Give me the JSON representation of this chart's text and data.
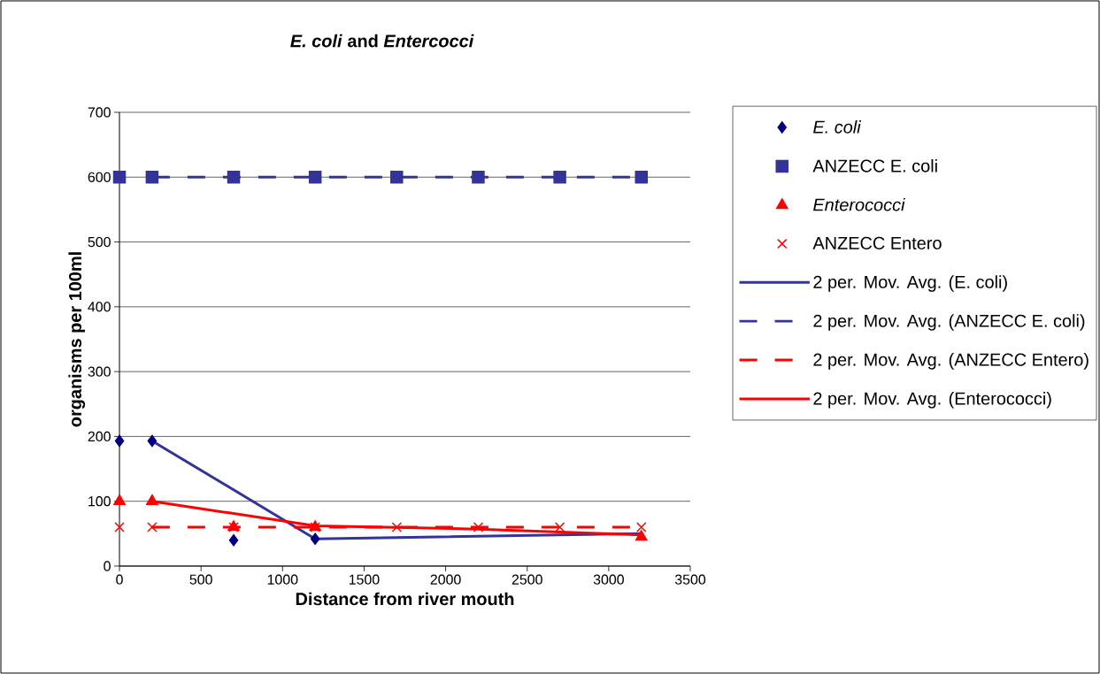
{
  "chart_data": {
    "type": "scatter",
    "title": "*E. coli* and *Entercocci*",
    "xlabel": "Distance from river mouth",
    "ylabel": "organisms per 100ml",
    "xlim": [
      0,
      3500
    ],
    "xticks": [
      0,
      500,
      1000,
      1500,
      2000,
      2500,
      3000,
      3500
    ],
    "ylim": [
      0,
      700
    ],
    "yticks": [
      0,
      100,
      200,
      300,
      400,
      500,
      600,
      700
    ],
    "grid": "y",
    "legend": "right",
    "series": [
      {
        "name": "*E. coli*",
        "type": "scatter",
        "marker": "diamond",
        "color": "#000080",
        "x": [
          0,
          200,
          700,
          1200
        ],
        "values": [
          193,
          193,
          40,
          42
        ]
      },
      {
        "name": "ANZECC E. coli",
        "type": "scatter",
        "marker": "square",
        "color": "#333399",
        "x": [
          0,
          200,
          700,
          1200,
          1700,
          2200,
          2700,
          3200
        ],
        "values": [
          600,
          600,
          600,
          600,
          600,
          600,
          600,
          600
        ]
      },
      {
        "name": "*Enterococci*",
        "type": "scatter",
        "marker": "triangle",
        "color": "#ff0000",
        "x": [
          0,
          200,
          700,
          1200,
          3200
        ],
        "values": [
          100,
          100,
          60,
          60,
          45
        ]
      },
      {
        "name": "ANZECC Entero",
        "type": "scatter",
        "marker": "cross",
        "color": "#ff0000",
        "x": [
          0,
          200,
          700,
          1200,
          1700,
          2200,
          2700,
          3200
        ],
        "values": [
          60,
          60,
          60,
          60,
          60,
          60,
          60,
          60
        ]
      },
      {
        "name": "2 per. Mov. Avg. (E. coli)",
        "type": "line",
        "marker": "none",
        "line_style": "solid",
        "color": "#333399",
        "x": [
          200,
          1200,
          3200
        ],
        "values": [
          193,
          42,
          50
        ]
      },
      {
        "name": "2 per. Mov. Avg. (ANZECC E. coli)",
        "type": "line",
        "marker": "none",
        "line_style": "dashed",
        "color": "#333399",
        "x": [
          200,
          3200
        ],
        "values": [
          600,
          600
        ]
      },
      {
        "name": "2 per. Mov. Avg. (ANZECC Entero)",
        "type": "line",
        "marker": "none",
        "line_style": "dashed",
        "color": "#ff0000",
        "x": [
          200,
          3200
        ],
        "values": [
          60,
          60
        ]
      },
      {
        "name": "2 per. Mov. Avg. (Enterococci)",
        "type": "line",
        "marker": "none",
        "line_style": "solid",
        "color": "#ff0000",
        "x": [
          200,
          1200,
          2200,
          3200
        ],
        "values": [
          100,
          62,
          57,
          48
        ]
      }
    ]
  }
}
